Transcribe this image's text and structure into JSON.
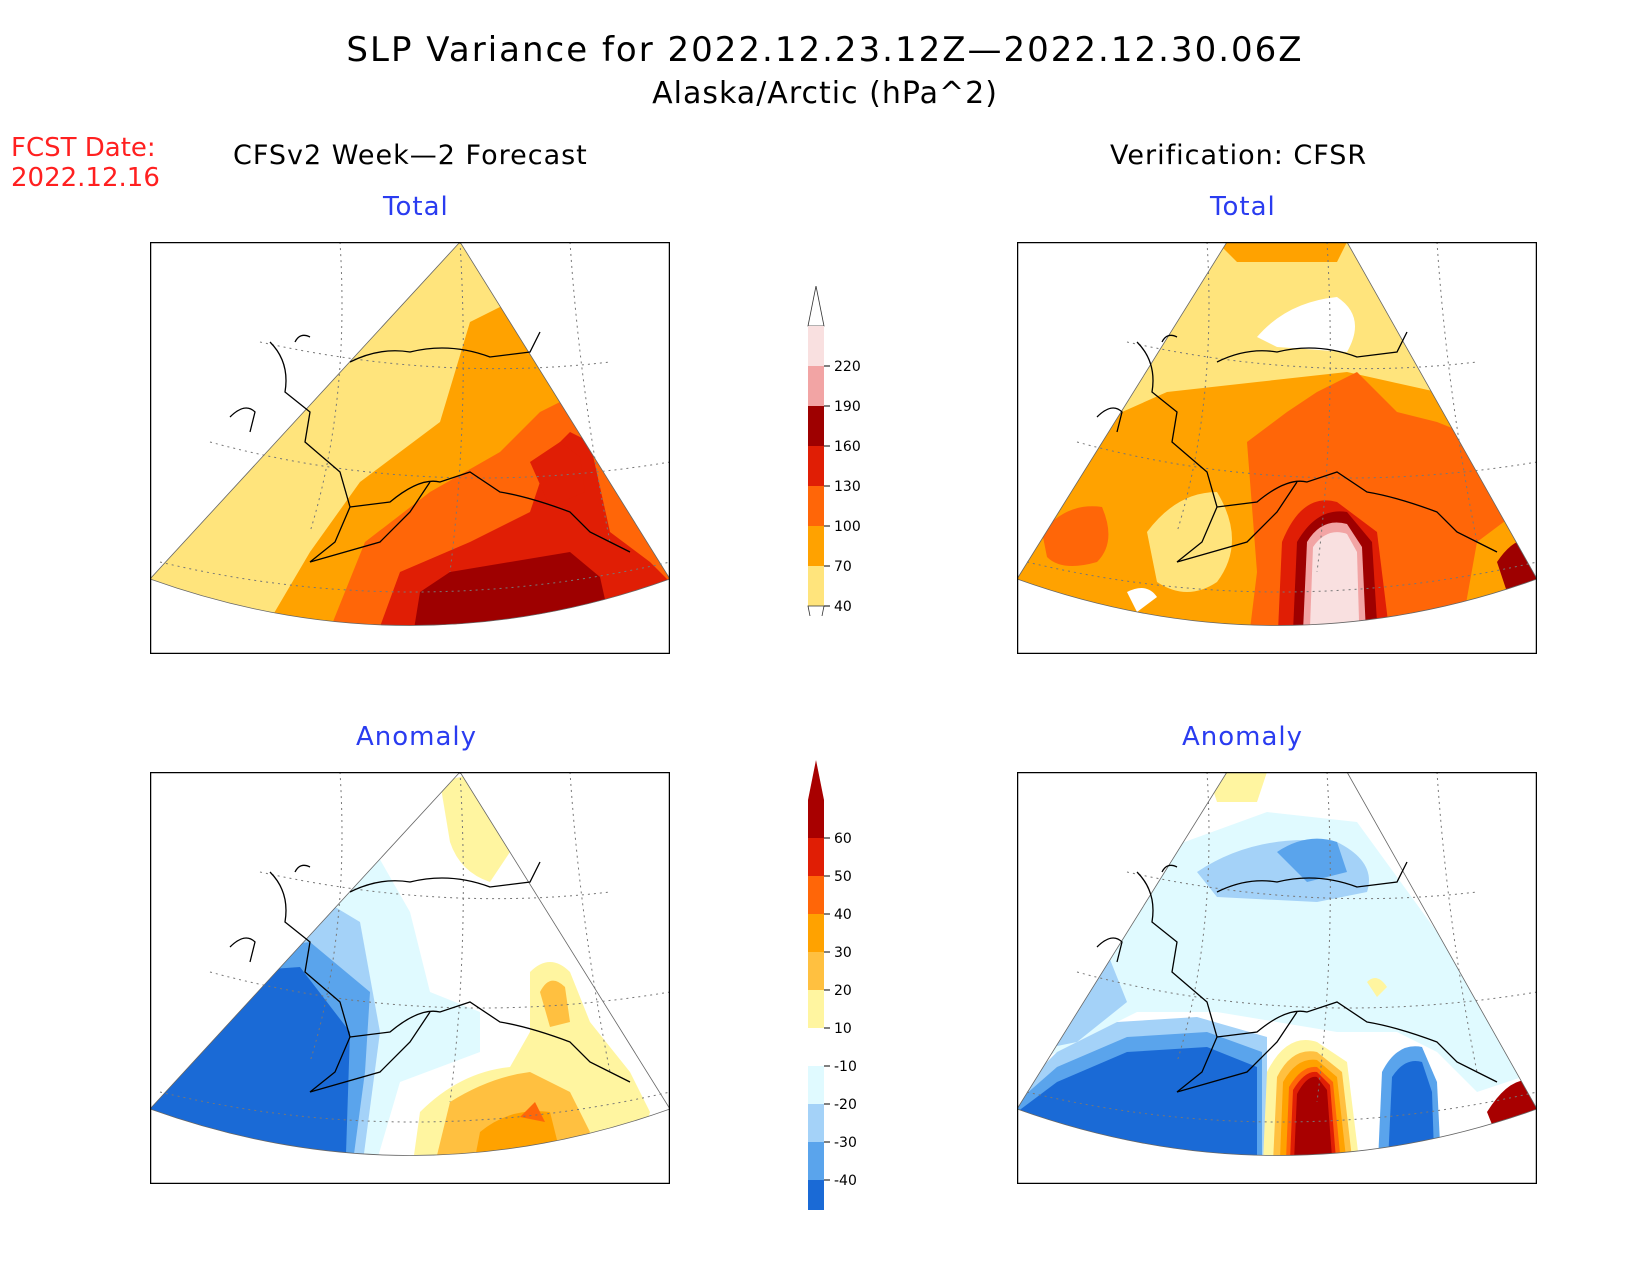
{
  "header": {
    "title": "SLP Variance for 2022.12.23.12Z—2022.12.30.06Z",
    "subtitle": "Alaska/Arctic (hPa^2)",
    "fcst_label": "FCST Date:",
    "fcst_date": "2022.12.16"
  },
  "columns": {
    "left": "CFSv2 Week—2 Forecast",
    "right": "Verification: CFSR"
  },
  "panels": {
    "forecast_total": "Total",
    "verification_total": "Total",
    "forecast_anomaly": "Anomaly",
    "verification_anomaly": "Anomaly"
  },
  "colorbars": {
    "total": {
      "labels": [
        "220",
        "190",
        "160",
        "130",
        "100",
        "70",
        "40"
      ],
      "colors": [
        "#f9e0e0",
        "#f2a4a4",
        "#9e0000",
        "#e01e05",
        "#ff6608",
        "#ffa200",
        "#ffe47c"
      ]
    },
    "anomaly": {
      "labels": [
        "60",
        "50",
        "40",
        "30",
        "20",
        "10",
        "-10",
        "-20",
        "-30",
        "-40"
      ],
      "colors": [
        "#a80000",
        "#e01e05",
        "#ff6608",
        "#ffa200",
        "#ffc040",
        "#fff5a0",
        "#ffffff",
        "#e0faff",
        "#a4d2f8",
        "#5aa4ec",
        "#1a6ad6",
        "#1a6ad6"
      ]
    }
  },
  "palette": {
    "total": {
      "c40": "#ffe47c",
      "c70": "#ffa200",
      "c100": "#ff6608",
      "c130": "#e01e05",
      "c160": "#9e0000",
      "c190": "#f2a4a4",
      "c220": "#f9e0e0"
    },
    "anomaly": {
      "n40": "#1a6ad6",
      "n30": "#5aa4ec",
      "n20": "#a4d2f8",
      "n10": "#e0faff",
      "p10": "#fff5a0",
      "p20": "#ffc040",
      "p30": "#ffa200",
      "p40": "#ff6608",
      "p50": "#e01e05",
      "p60": "#a80000"
    }
  }
}
